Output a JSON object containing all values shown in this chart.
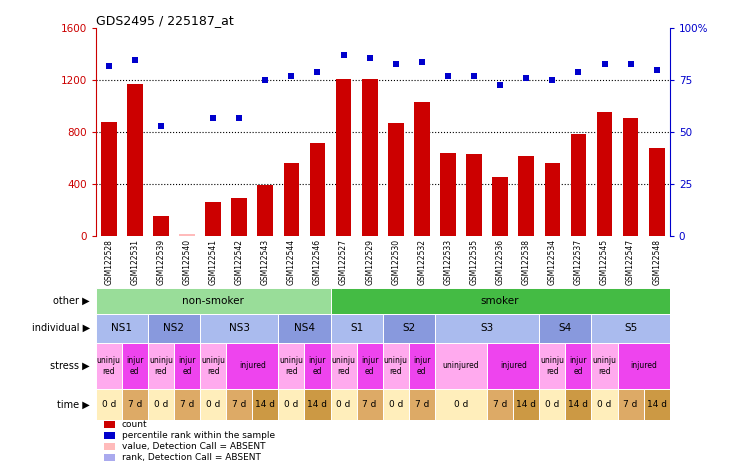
{
  "title": "GDS2495 / 225187_at",
  "samples": [
    "GSM122528",
    "GSM122531",
    "GSM122539",
    "GSM122540",
    "GSM122541",
    "GSM122542",
    "GSM122543",
    "GSM122544",
    "GSM122546",
    "GSM122527",
    "GSM122529",
    "GSM122530",
    "GSM122532",
    "GSM122533",
    "GSM122535",
    "GSM122536",
    "GSM122538",
    "GSM122534",
    "GSM122537",
    "GSM122545",
    "GSM122547",
    "GSM122548"
  ],
  "bar_values": [
    880,
    1170,
    155,
    18,
    265,
    290,
    395,
    565,
    720,
    1210,
    1210,
    870,
    1035,
    640,
    630,
    455,
    620,
    560,
    785,
    960,
    910,
    680
  ],
  "bar_absent": [
    false,
    false,
    false,
    true,
    false,
    false,
    false,
    false,
    false,
    false,
    false,
    false,
    false,
    false,
    false,
    false,
    false,
    false,
    false,
    false,
    false,
    false
  ],
  "rank_values": [
    82,
    85,
    53,
    null,
    57,
    57,
    75,
    77,
    79,
    87,
    86,
    83,
    84,
    77,
    77,
    73,
    76,
    75,
    79,
    83,
    83,
    80
  ],
  "rank_absent_idx": [
    3
  ],
  "bar_color": "#cc0000",
  "bar_absent_color": "#ffbbbb",
  "rank_color": "#0000cc",
  "rank_absent_color": "#aaaaee",
  "ylim_left": [
    0,
    1600
  ],
  "ylim_right": [
    0,
    100
  ],
  "yticks_left": [
    0,
    400,
    800,
    1200,
    1600
  ],
  "ytick_labels_left": [
    "0",
    "400",
    "800",
    "1200",
    "1600"
  ],
  "yticks_right": [
    0,
    25,
    50,
    75,
    100
  ],
  "ytick_labels_right": [
    "0",
    "25",
    "50",
    "75",
    "100%"
  ],
  "grid_values": [
    400,
    800,
    1200
  ],
  "other_row": [
    {
      "label": "non-smoker",
      "start": 0,
      "end": 9,
      "color": "#99dd99"
    },
    {
      "label": "smoker",
      "start": 9,
      "end": 22,
      "color": "#44bb44"
    }
  ],
  "individual_row": [
    {
      "label": "NS1",
      "start": 0,
      "end": 2,
      "color": "#aabbee"
    },
    {
      "label": "NS2",
      "start": 2,
      "end": 4,
      "color": "#8899dd"
    },
    {
      "label": "NS3",
      "start": 4,
      "end": 7,
      "color": "#aabbee"
    },
    {
      "label": "NS4",
      "start": 7,
      "end": 9,
      "color": "#8899dd"
    },
    {
      "label": "S1",
      "start": 9,
      "end": 11,
      "color": "#aabbee"
    },
    {
      "label": "S2",
      "start": 11,
      "end": 13,
      "color": "#8899dd"
    },
    {
      "label": "S3",
      "start": 13,
      "end": 17,
      "color": "#aabbee"
    },
    {
      "label": "S4",
      "start": 17,
      "end": 19,
      "color": "#8899dd"
    },
    {
      "label": "S5",
      "start": 19,
      "end": 22,
      "color": "#aabbee"
    }
  ],
  "stress_row": [
    {
      "label": "uninju\nred",
      "start": 0,
      "end": 1,
      "color": "#ffaaee"
    },
    {
      "label": "injur\ned",
      "start": 1,
      "end": 2,
      "color": "#ee44ee"
    },
    {
      "label": "uninju\nred",
      "start": 2,
      "end": 3,
      "color": "#ffaaee"
    },
    {
      "label": "injur\ned",
      "start": 3,
      "end": 4,
      "color": "#ee44ee"
    },
    {
      "label": "uninju\nred",
      "start": 4,
      "end": 5,
      "color": "#ffaaee"
    },
    {
      "label": "injured",
      "start": 5,
      "end": 7,
      "color": "#ee44ee"
    },
    {
      "label": "uninju\nred",
      "start": 7,
      "end": 8,
      "color": "#ffaaee"
    },
    {
      "label": "injur\ned",
      "start": 8,
      "end": 9,
      "color": "#ee44ee"
    },
    {
      "label": "uninju\nred",
      "start": 9,
      "end": 10,
      "color": "#ffaaee"
    },
    {
      "label": "injur\ned",
      "start": 10,
      "end": 11,
      "color": "#ee44ee"
    },
    {
      "label": "uninju\nred",
      "start": 11,
      "end": 12,
      "color": "#ffaaee"
    },
    {
      "label": "injur\ned",
      "start": 12,
      "end": 13,
      "color": "#ee44ee"
    },
    {
      "label": "uninjured",
      "start": 13,
      "end": 15,
      "color": "#ffaaee"
    },
    {
      "label": "injured",
      "start": 15,
      "end": 17,
      "color": "#ee44ee"
    },
    {
      "label": "uninju\nred",
      "start": 17,
      "end": 18,
      "color": "#ffaaee"
    },
    {
      "label": "injur\ned",
      "start": 18,
      "end": 19,
      "color": "#ee44ee"
    },
    {
      "label": "uninju\nred",
      "start": 19,
      "end": 20,
      "color": "#ffaaee"
    },
    {
      "label": "injured",
      "start": 20,
      "end": 22,
      "color": "#ee44ee"
    }
  ],
  "time_row": [
    {
      "label": "0 d",
      "start": 0,
      "end": 1,
      "color": "#ffeebb"
    },
    {
      "label": "7 d",
      "start": 1,
      "end": 2,
      "color": "#ddaa66"
    },
    {
      "label": "0 d",
      "start": 2,
      "end": 3,
      "color": "#ffeebb"
    },
    {
      "label": "7 d",
      "start": 3,
      "end": 4,
      "color": "#ddaa66"
    },
    {
      "label": "0 d",
      "start": 4,
      "end": 5,
      "color": "#ffeebb"
    },
    {
      "label": "7 d",
      "start": 5,
      "end": 6,
      "color": "#ddaa66"
    },
    {
      "label": "14 d",
      "start": 6,
      "end": 7,
      "color": "#cc9944"
    },
    {
      "label": "0 d",
      "start": 7,
      "end": 8,
      "color": "#ffeebb"
    },
    {
      "label": "14 d",
      "start": 8,
      "end": 9,
      "color": "#cc9944"
    },
    {
      "label": "0 d",
      "start": 9,
      "end": 10,
      "color": "#ffeebb"
    },
    {
      "label": "7 d",
      "start": 10,
      "end": 11,
      "color": "#ddaa66"
    },
    {
      "label": "0 d",
      "start": 11,
      "end": 12,
      "color": "#ffeebb"
    },
    {
      "label": "7 d",
      "start": 12,
      "end": 13,
      "color": "#ddaa66"
    },
    {
      "label": "0 d",
      "start": 13,
      "end": 15,
      "color": "#ffeebb"
    },
    {
      "label": "7 d",
      "start": 15,
      "end": 16,
      "color": "#ddaa66"
    },
    {
      "label": "14 d",
      "start": 16,
      "end": 17,
      "color": "#cc9944"
    },
    {
      "label": "0 d",
      "start": 17,
      "end": 18,
      "color": "#ffeebb"
    },
    {
      "label": "14 d",
      "start": 18,
      "end": 19,
      "color": "#cc9944"
    },
    {
      "label": "0 d",
      "start": 19,
      "end": 20,
      "color": "#ffeebb"
    },
    {
      "label": "7 d",
      "start": 20,
      "end": 21,
      "color": "#ddaa66"
    },
    {
      "label": "14 d",
      "start": 21,
      "end": 22,
      "color": "#cc9944"
    }
  ],
  "legend_items": [
    {
      "label": "count",
      "color": "#cc0000"
    },
    {
      "label": "percentile rank within the sample",
      "color": "#0000cc"
    },
    {
      "label": "value, Detection Call = ABSENT",
      "color": "#ffbbbb"
    },
    {
      "label": "rank, Detection Call = ABSENT",
      "color": "#aaaaee"
    }
  ],
  "row_labels": [
    "other",
    "individual",
    "stress",
    "time"
  ],
  "xticklabels_bg": "#cccccc"
}
